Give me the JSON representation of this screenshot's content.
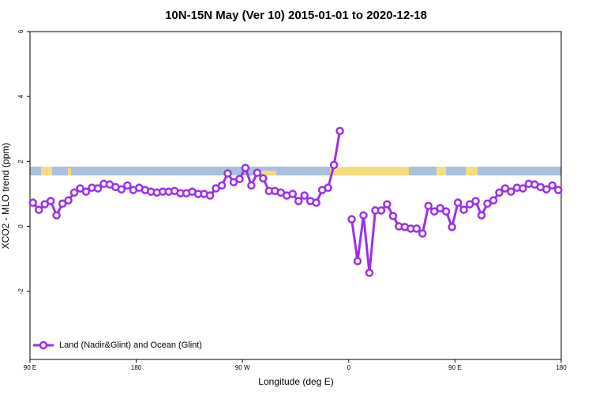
{
  "chart_data": {
    "type": "line",
    "title": "10N-15N May (Ver 10)   2015-01-01 to 2020-12-18",
    "x_label": "Longitude (deg E)",
    "y_label": "XCO2 - MLO trend (ppm)",
    "x": [
      92.5,
      97.5,
      102.5,
      107.5,
      112.5,
      117.5,
      122.5,
      127.5,
      132.5,
      137.5,
      142.5,
      147.5,
      152.5,
      157.5,
      162.5,
      167.5,
      172.5,
      177.5,
      182.5,
      187.5,
      192.5,
      197.5,
      202.5,
      207.5,
      212.5,
      217.5,
      222.5,
      227.5,
      232.5,
      237.5,
      242.5,
      247.5,
      252.5,
      257.5,
      262.5,
      267.5,
      272.5,
      277.5,
      282.5,
      287.5,
      292.5,
      297.5,
      302.5,
      307.5,
      312.5,
      317.5,
      322.5,
      327.5,
      332.5,
      337.5,
      342.5,
      347.5,
      352.5,
      357.5,
      362.5,
      367.5,
      372.5,
      377.5,
      382.5,
      387.5,
      392.5,
      397.5,
      402.5,
      407.5,
      412.5,
      417.5,
      422.5,
      427.5,
      432.5,
      437.5,
      442.5,
      447.5,
      452.5,
      457.5,
      462.5,
      467.5,
      472.5,
      477.5,
      482.5,
      487.5,
      492.5,
      497.5,
      502.5,
      507.5,
      512.5,
      517.5,
      522.5,
      527.5,
      532.5,
      537.5
    ],
    "series": [
      {
        "name": "Land (Nadir&Glint) and Ocean (Glint)",
        "color": "#9b30e8",
        "values": [
          0.73,
          0.51,
          0.68,
          0.78,
          0.34,
          0.7,
          0.8,
          1.04,
          1.17,
          1.07,
          1.19,
          1.17,
          1.31,
          1.29,
          1.21,
          1.14,
          1.26,
          1.12,
          1.19,
          1.12,
          1.07,
          1.04,
          1.07,
          1.07,
          1.09,
          1.02,
          1.02,
          1.07,
          1.0,
          1.0,
          0.95,
          1.17,
          1.26,
          1.63,
          1.36,
          1.46,
          1.8,
          1.26,
          1.65,
          1.48,
          1.09,
          1.09,
          1.04,
          0.95,
          1.0,
          0.78,
          0.95,
          0.78,
          0.73,
          1.12,
          1.19,
          1.89,
          2.94,
          null,
          0.22,
          -1.07,
          0.34,
          -1.43,
          0.49,
          0.49,
          0.68,
          0.32,
          0.0,
          -0.02,
          -0.07,
          -0.07,
          -0.22,
          0.63,
          0.46,
          0.56,
          0.46,
          -0.02,
          0.73,
          0.51,
          0.68,
          0.78,
          0.34,
          0.7,
          0.8,
          1.04,
          1.17,
          1.07,
          1.19,
          1.17,
          1.31,
          1.29,
          1.21,
          1.14,
          1.26,
          1.12
        ]
      }
    ],
    "xlim": [
      90,
      540
    ],
    "xticks": [
      {
        "value": 90,
        "label": "90 E"
      },
      {
        "value": 180,
        "label": "180"
      },
      {
        "value": 270,
        "label": "90 W"
      },
      {
        "value": 360,
        "label": "0"
      },
      {
        "value": 450,
        "label": "90 E"
      },
      {
        "value": 540,
        "label": "180"
      }
    ],
    "ylim": [
      -4.1,
      6
    ],
    "yticks": [
      -2,
      0,
      2,
      4,
      6
    ],
    "legend": "bottom-left"
  }
}
